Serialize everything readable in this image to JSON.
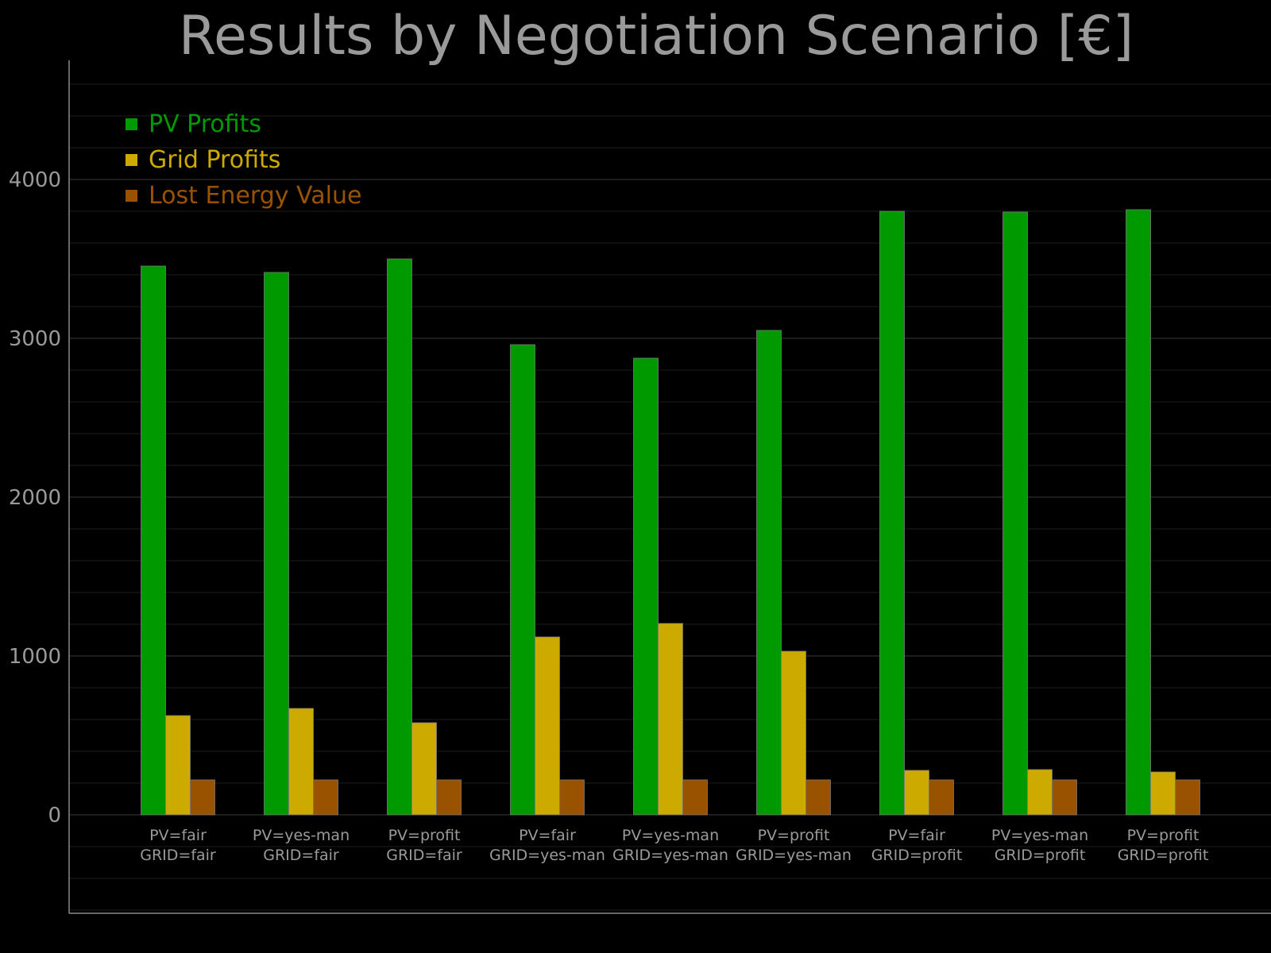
{
  "chart_data": {
    "type": "bar",
    "title": "Results by Negotiation Scenario [€]",
    "xlabel": "",
    "ylabel": "",
    "ylim": [
      -620,
      4750
    ],
    "yticks": [
      0,
      1000,
      2000,
      3000,
      4000
    ],
    "yticks_labels": [
      "0",
      "1000",
      "2000",
      "3000",
      "4000"
    ],
    "grid": true,
    "legend_position": "top-left",
    "categories": [
      [
        "PV=fair",
        "GRID=fair"
      ],
      [
        "PV=yes-man",
        "GRID=fair"
      ],
      [
        "PV=profit",
        "GRID=fair"
      ],
      [
        "PV=fair",
        "GRID=yes-man"
      ],
      [
        "PV=yes-man",
        "GRID=yes-man"
      ],
      [
        "PV=profit",
        "GRID=yes-man"
      ],
      [
        "PV=fair",
        "GRID=profit"
      ],
      [
        "PV=yes-man",
        "GRID=profit"
      ],
      [
        "PV=profit",
        "GRID=profit"
      ]
    ],
    "series": [
      {
        "name": "PV Profits",
        "color": "#009900",
        "values": [
          3455,
          3415,
          3500,
          2960,
          2875,
          3050,
          3800,
          3795,
          3810
        ]
      },
      {
        "name": "Grid Profits",
        "color": "#ccaa00",
        "values": [
          625,
          670,
          580,
          1120,
          1205,
          1030,
          280,
          285,
          270
        ]
      },
      {
        "name": "Lost Energy Value",
        "color": "#995200",
        "values": [
          220,
          220,
          220,
          220,
          220,
          220,
          220,
          220,
          220
        ]
      }
    ]
  }
}
